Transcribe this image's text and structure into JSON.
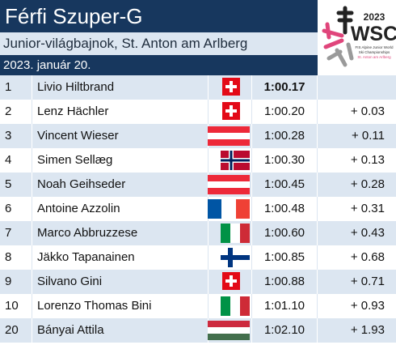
{
  "header": {
    "title": "Férfi Szuper-G",
    "subtitle": "Junior-világbajnok, St. Anton am Arlberg",
    "date": "2023. január 20."
  },
  "logo": {
    "year": "2023",
    "name": "WSC",
    "caption": [
      "FIS Alpine Junior World",
      "Ski Championships",
      "St. Anton am Arlberg"
    ]
  },
  "table": {
    "rows": [
      [
        "1",
        "Livio Hiltbrand",
        "1:00.17"
      ],
      [
        "2",
        "Lenz Hächler",
        "1:00.20",
        "+ 0.03"
      ],
      [
        "3",
        "Vincent Wieser",
        "1:00.28",
        "+ 0.11"
      ],
      [
        "4",
        "Simen Sellæg",
        "1:00.30",
        "+ 0.13"
      ],
      [
        "5",
        "Noah Geihseder",
        "1:00.45",
        "+ 0.28"
      ],
      [
        "6",
        "Antoine Azzolin",
        "1:00.48",
        "+ 0.31"
      ],
      [
        "7",
        "Marco Abbruzzese",
        "1:00.60",
        "+ 0.43"
      ],
      [
        "8",
        "Jäkko Tapanainen",
        "1:00.85",
        "+ 0.68"
      ],
      [
        "9",
        "Silvano Gini",
        "1:00.88",
        "+ 0.71"
      ],
      [
        "10",
        "Lorenzo Thomas Bini",
        "1:01.10",
        "+ 0.93"
      ],
      [
        "20",
        "Bányai Attila",
        "1:02.10",
        "+ 1.93"
      ]
    ]
  }
}
